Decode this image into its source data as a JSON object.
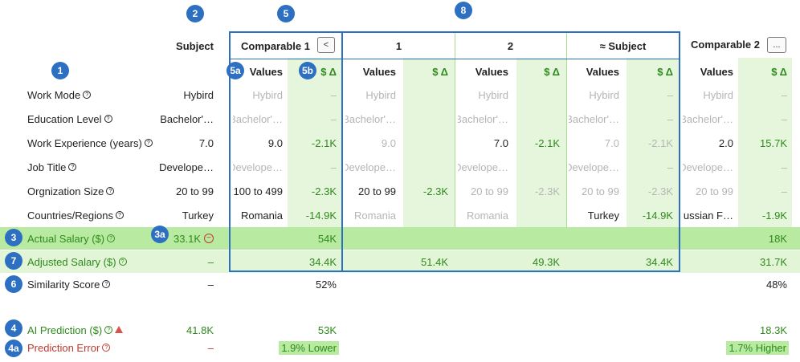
{
  "badges": {
    "b1": "1",
    "b2": "2",
    "b3": "3",
    "b3a": "3a",
    "b4": "4",
    "b4a": "4a",
    "b5": "5",
    "b5a": "5a",
    "b5b": "5b",
    "b6": "6",
    "b7": "7",
    "b8": "8"
  },
  "headers": {
    "subject": "Subject",
    "comparable1": "Comparable 1",
    "comparable1_btn": "<",
    "col_1": "1",
    "col_2": "2",
    "col_approx": "≈ Subject",
    "comparable2": "Comparable 2",
    "comparable2_btn": "...",
    "values": "Values",
    "delta": "$ Δ"
  },
  "rows": [
    {
      "label": "Work Mode",
      "subject": "Hybird",
      "c1_val": "Hybird",
      "c1_delta": "–",
      "k1_val": "Hybird",
      "k2_val": "Hybird",
      "ks_val": "Hybird",
      "ks_delta": "–",
      "c2_val": "Hybird",
      "c2_delta": "–"
    },
    {
      "label": "Education Level",
      "subject": "Bachelor'…",
      "c1_val": "Bachelor'…",
      "c1_delta": "–",
      "k1_val": "Bachelor'…",
      "k2_val": "Bachelor'…",
      "ks_val": "Bachelor'…",
      "ks_delta": "–",
      "c2_val": "Bachelor'…",
      "c2_delta": "–"
    },
    {
      "label": "Work Experience (years)",
      "subject": "7.0",
      "c1_val": "9.0",
      "c1_delta": "-2.1K",
      "k1_val": "9.0",
      "k2_val": "7.0",
      "k2_delta": "-2.1K",
      "ks_val": "7.0",
      "ks_delta": "-2.1K",
      "c2_val": "2.0",
      "c2_delta": "15.7K"
    },
    {
      "label": "Job Title",
      "subject": "Develope…",
      "c1_val": "Develope…",
      "c1_delta": "–",
      "k1_val": "Develope…",
      "k2_val": "Develope…",
      "ks_val": "Develope…",
      "ks_delta": "–",
      "c2_val": "Develope…",
      "c2_delta": "–"
    },
    {
      "label": "Orgnization Size",
      "subject": "20 to 99",
      "c1_val": "100 to 499",
      "c1_delta": "-2.3K",
      "k1_val": "20 to 99",
      "k1_delta": "-2.3K",
      "k2_val": "20 to 99",
      "k2_delta": "-2.3K",
      "ks_val": "20 to 99",
      "ks_delta": "-2.3K",
      "c2_val": "20 to 99",
      "c2_delta": "–"
    },
    {
      "label": "Countries/Regions",
      "subject": "Turkey",
      "c1_val": "Romania",
      "c1_delta": "-14.9K",
      "k1_val": "Romania",
      "k2_val": "Romania",
      "ks_val": "Turkey",
      "ks_delta": "-14.9K",
      "c2_val": "Russian F…",
      "c2_delta": "-1.9K"
    }
  ],
  "actual_salary": {
    "label": "Actual Salary ($)",
    "subject": "33.1K",
    "c1": "54K",
    "c2": "18K"
  },
  "adjusted_salary": {
    "label": "Adjusted Salary ($)",
    "subject": "–",
    "c1": "34.4K",
    "k1": "51.4K",
    "k2": "49.3K",
    "ks": "34.4K",
    "c2": "31.7K"
  },
  "similarity": {
    "label": "Similarity Score",
    "subject": "–",
    "c1": "52%",
    "c2": "48%"
  },
  "ai_prediction": {
    "label": "AI Prediction ($)",
    "subject": "41.8K",
    "c1": "53K",
    "c2": "18.3K"
  },
  "prediction_error": {
    "label": "Prediction Error",
    "subject": "–",
    "c1": "1.9% Lower",
    "c2": "1.7% Higher"
  },
  "colors": {
    "accent_blue": "#2d6fc0",
    "green_text": "#2e8a1c",
    "red_text": "#c0392b",
    "band_green": "#b9eaa1",
    "col_green": "#e6f6dc"
  }
}
